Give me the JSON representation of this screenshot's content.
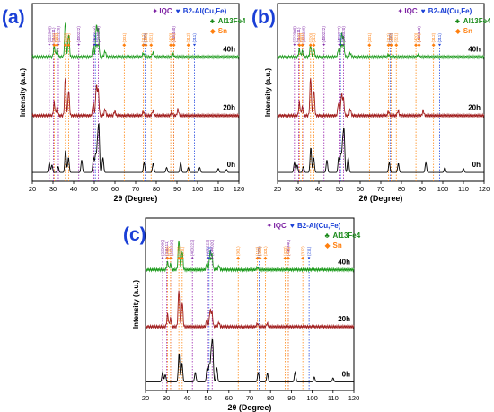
{
  "chart_data": [
    {
      "type": "line",
      "panel": "(a)",
      "xlabel": "2θ (Degree)",
      "ylabel": "Intensity (a.u.)",
      "xlim": [
        20,
        120
      ],
      "xticks": [
        20,
        30,
        40,
        50,
        60,
        70,
        80,
        90,
        100,
        110,
        120
      ],
      "legend": {
        "placement": "top-right",
        "entries": [
          {
            "symbol": "✦",
            "label": "IQC",
            "color": "#7b1fa2"
          },
          {
            "symbol": "♥",
            "label": "B2-Al(Cu,Fe)",
            "color": "#1a3fd6"
          },
          {
            "symbol": "♣",
            "label": "Al13Fe4",
            "color": "#1b8a1b"
          },
          {
            "symbol": "◆",
            "label": "Sn",
            "color": "#ff7f0e"
          }
        ]
      },
      "series": [
        {
          "name": "0h",
          "color": "#000000",
          "peaks": [
            [
              28.2,
              0.2
            ],
            [
              29.5,
              0.15
            ],
            [
              32.5,
              0.12
            ],
            [
              36.1,
              0.45
            ],
            [
              37.5,
              0.3
            ],
            [
              43.9,
              0.25
            ],
            [
              49.6,
              0.3
            ],
            [
              50.6,
              0.35
            ],
            [
              51.5,
              0.55
            ],
            [
              52.2,
              0.9
            ],
            [
              54.2,
              0.3
            ],
            [
              74.1,
              0.2
            ],
            [
              78.5,
              0.18
            ],
            [
              85,
              0.1
            ],
            [
              91.8,
              0.2
            ],
            [
              95.5,
              0.1
            ],
            [
              101,
              0.1
            ],
            [
              110,
              0.08
            ],
            [
              114,
              0.06
            ]
          ]
        },
        {
          "name": "20h",
          "color": "#a11d1d",
          "peaks": [
            [
              30.6,
              0.3
            ],
            [
              32.0,
              0.2
            ],
            [
              36.0,
              0.9
            ],
            [
              37.6,
              0.6
            ],
            [
              49.5,
              0.3
            ],
            [
              51.0,
              0.7
            ],
            [
              51.9,
              0.6
            ],
            [
              55.2,
              0.15
            ],
            [
              59.9,
              0.1
            ],
            [
              73.7,
              0.1
            ],
            [
              78.4,
              0.12
            ],
            [
              87.5,
              0.1
            ],
            [
              90.5,
              0.15
            ]
          ]
        },
        {
          "name": "40h",
          "color": "#1b9a1b",
          "peaks": [
            [
              30.6,
              0.3
            ],
            [
              32.0,
              0.2
            ],
            [
              36.0,
              0.9
            ],
            [
              37.6,
              0.6
            ],
            [
              49.5,
              0.3
            ],
            [
              51.0,
              0.8
            ],
            [
              51.9,
              0.7
            ],
            [
              55.2,
              0.15
            ],
            [
              73.7,
              0.1
            ],
            [
              78.4,
              0.12
            ],
            [
              88.0,
              0.08
            ]
          ]
        }
      ],
      "annotations": {
        "purple": [
          {
            "x": 28.2,
            "label": "(222000)"
          },
          {
            "x": 30.2,
            "label": "(311111)"
          },
          {
            "x": 32.6,
            "label": "(222220)"
          },
          {
            "x": 42.5,
            "label": "(400222)"
          },
          {
            "x": 49.8,
            "label": "(422222)"
          },
          {
            "x": 52.0,
            "label": "(244020)"
          },
          {
            "x": 88.5,
            "label": "(446440)"
          }
        ],
        "blue": [
          {
            "x": 50.5,
            "label": "(110)"
          },
          {
            "x": 74.5,
            "label": "(200)"
          },
          {
            "x": 98.5,
            "label": "(211)"
          }
        ],
        "orange": [
          {
            "x": 30.6,
            "label": "(200)"
          },
          {
            "x": 32.0,
            "label": "(101)"
          },
          {
            "x": 36.0,
            "label": "(220)"
          },
          {
            "x": 37.6,
            "label": "(211)"
          },
          {
            "x": 64.5,
            "label": "(301)"
          },
          {
            "x": 73.7,
            "label": "(112)"
          },
          {
            "x": 75.0,
            "label": "(400)"
          },
          {
            "x": 77.5,
            "label": "(321)"
          },
          {
            "x": 87.0,
            "label": "(420)"
          },
          {
            "x": 88.5,
            "label": "(411)"
          },
          {
            "x": 95.5,
            "label": "(312)"
          }
        ]
      }
    },
    {
      "type": "line",
      "panel": "(b)",
      "xlabel": "2θ (Degree)",
      "ylabel": "Intensity (a.u.)",
      "xlim": [
        20,
        120
      ],
      "xticks": [
        20,
        30,
        40,
        50,
        60,
        70,
        80,
        90,
        100,
        110,
        120
      ],
      "legend": {
        "placement": "top-right",
        "entries": [
          {
            "symbol": "✦",
            "label": "IQC",
            "color": "#7b1fa2"
          },
          {
            "symbol": "♥",
            "label": "B2-Al(Cu,Fe)",
            "color": "#1a3fd6"
          },
          {
            "symbol": "♣",
            "label": "Al13Fe4",
            "color": "#1b8a1b"
          },
          {
            "symbol": "◆",
            "label": "Sn",
            "color": "#ff7f0e"
          }
        ]
      },
      "series": [
        {
          "name": "0h",
          "color": "#000000",
          "peaks": [
            [
              28.2,
              0.2
            ],
            [
              29.5,
              0.15
            ],
            [
              32.5,
              0.12
            ],
            [
              36.1,
              0.5
            ],
            [
              37.5,
              0.3
            ],
            [
              43.9,
              0.25
            ],
            [
              49.6,
              0.3
            ],
            [
              50.6,
              0.35
            ],
            [
              51.5,
              0.55
            ],
            [
              52.2,
              0.8
            ],
            [
              54.2,
              0.3
            ],
            [
              74.1,
              0.2
            ],
            [
              78.5,
              0.18
            ],
            [
              91.8,
              0.2
            ],
            [
              101,
              0.1
            ],
            [
              110,
              0.08
            ]
          ]
        },
        {
          "name": "20h",
          "color": "#a11d1d",
          "peaks": [
            [
              30.6,
              0.3
            ],
            [
              32.0,
              0.2
            ],
            [
              36.0,
              0.9
            ],
            [
              37.6,
              0.6
            ],
            [
              49.5,
              0.3
            ],
            [
              51.0,
              0.5
            ],
            [
              51.9,
              0.4
            ],
            [
              55.2,
              0.15
            ],
            [
              73.7,
              0.1
            ],
            [
              78.4,
              0.12
            ],
            [
              90.5,
              0.12
            ]
          ]
        },
        {
          "name": "40h",
          "color": "#1b9a1b",
          "peaks": [
            [
              30.6,
              0.2
            ],
            [
              32.0,
              0.15
            ],
            [
              36.0,
              0.3
            ],
            [
              37.6,
              0.2
            ],
            [
              49.5,
              0.2
            ],
            [
              51.0,
              0.6
            ],
            [
              51.9,
              0.5
            ],
            [
              55.2,
              0.1
            ],
            [
              73.7,
              0.06
            ],
            [
              88.0,
              0.06
            ]
          ]
        }
      ],
      "annotations": {
        "purple": [
          {
            "x": 28.2,
            "label": "(222000)"
          },
          {
            "x": 30.2,
            "label": "(311111)"
          },
          {
            "x": 32.6,
            "label": "(222220)"
          },
          {
            "x": 42.5,
            "label": "(400222)"
          },
          {
            "x": 49.8,
            "label": "(422222)"
          },
          {
            "x": 52.0,
            "label": "(244020)"
          },
          {
            "x": 88.5,
            "label": "(446440)"
          }
        ],
        "blue": [
          {
            "x": 50.5,
            "label": "(110)"
          },
          {
            "x": 74.5,
            "label": "(200)"
          },
          {
            "x": 98.5,
            "label": "(211)"
          }
        ],
        "orange": [
          {
            "x": 30.6,
            "label": "(200)"
          },
          {
            "x": 32.0,
            "label": "(101)"
          },
          {
            "x": 36.0,
            "label": "(220)"
          },
          {
            "x": 37.6,
            "label": "(211)"
          },
          {
            "x": 64.5,
            "label": "(301)"
          },
          {
            "x": 73.7,
            "label": "(112)"
          },
          {
            "x": 75.0,
            "label": "(400)"
          },
          {
            "x": 77.5,
            "label": "(321)"
          },
          {
            "x": 87.0,
            "label": "(420)"
          },
          {
            "x": 88.5,
            "label": "(411)"
          },
          {
            "x": 95.5,
            "label": "(312)"
          }
        ]
      }
    },
    {
      "type": "line",
      "panel": "(c)",
      "xlabel": "2θ (Degree)",
      "ylabel": "Intensity (a.u.)",
      "xlim": [
        20,
        120
      ],
      "xticks": [
        20,
        30,
        40,
        50,
        60,
        70,
        80,
        90,
        100,
        110,
        120
      ],
      "legend": {
        "placement": "top-right",
        "entries": [
          {
            "symbol": "✦",
            "label": "IQC",
            "color": "#7b1fa2"
          },
          {
            "symbol": "♥",
            "label": "B2-Al(Cu,Fe)",
            "color": "#1a3fd6"
          },
          {
            "symbol": "♣",
            "label": "Al13Fe4",
            "color": "#1b8a1b"
          },
          {
            "symbol": "◆",
            "label": "Sn",
            "color": "#ff7f0e"
          }
        ]
      },
      "series": [
        {
          "name": "0h",
          "color": "#000000",
          "peaks": [
            [
              28.2,
              0.2
            ],
            [
              29.5,
              0.15
            ],
            [
              36.1,
              0.6
            ],
            [
              37.5,
              0.4
            ],
            [
              43.9,
              0.2
            ],
            [
              49.6,
              0.3
            ],
            [
              50.6,
              0.35
            ],
            [
              51.5,
              0.55
            ],
            [
              52.2,
              0.8
            ],
            [
              54.2,
              0.3
            ],
            [
              74.1,
              0.2
            ],
            [
              78.5,
              0.18
            ],
            [
              91.8,
              0.2
            ],
            [
              101,
              0.1
            ],
            [
              110,
              0.08
            ]
          ]
        },
        {
          "name": "20h",
          "color": "#a11d1d",
          "peaks": [
            [
              30.6,
              0.3
            ],
            [
              32.0,
              0.2
            ],
            [
              36.0,
              0.9
            ],
            [
              37.6,
              0.6
            ],
            [
              49.5,
              0.2
            ],
            [
              51.0,
              0.4
            ],
            [
              51.9,
              0.35
            ],
            [
              55.2,
              0.1
            ],
            [
              73.7,
              0.08
            ],
            [
              78.4,
              0.08
            ]
          ]
        },
        {
          "name": "40h",
          "color": "#1b9a1b",
          "peaks": [
            [
              30.6,
              0.2
            ],
            [
              32.0,
              0.15
            ],
            [
              36.0,
              0.8
            ],
            [
              37.6,
              0.5
            ],
            [
              49.5,
              0.2
            ],
            [
              51.0,
              0.5
            ],
            [
              51.9,
              0.4
            ],
            [
              55.2,
              0.1
            ],
            [
              73.7,
              0.06
            ]
          ]
        }
      ],
      "annotations": {
        "purple": [
          {
            "x": 28.2,
            "label": "(222000)"
          },
          {
            "x": 30.2,
            "label": "(311111)"
          },
          {
            "x": 32.6,
            "label": "(222220)"
          },
          {
            "x": 42.5,
            "label": "(400222)"
          },
          {
            "x": 49.8,
            "label": "(422222)"
          },
          {
            "x": 52.0,
            "label": "(244020)"
          },
          {
            "x": 88.5,
            "label": "(446440)"
          }
        ],
        "blue": [
          {
            "x": 50.5,
            "label": "(110)"
          },
          {
            "x": 74.5,
            "label": "(200)"
          },
          {
            "x": 98.5,
            "label": "(211)"
          }
        ],
        "orange": [
          {
            "x": 30.6,
            "label": "(200)"
          },
          {
            "x": 32.0,
            "label": "(101)"
          },
          {
            "x": 36.0,
            "label": "(220)"
          },
          {
            "x": 37.6,
            "label": "(211)"
          },
          {
            "x": 64.5,
            "label": "(301)"
          },
          {
            "x": 73.7,
            "label": "(112)"
          },
          {
            "x": 75.0,
            "label": "(400)"
          },
          {
            "x": 77.5,
            "label": "(321)"
          },
          {
            "x": 87.0,
            "label": "(420)"
          },
          {
            "x": 88.5,
            "label": "(411)"
          },
          {
            "x": 95.5,
            "label": "(312)"
          }
        ]
      }
    }
  ]
}
